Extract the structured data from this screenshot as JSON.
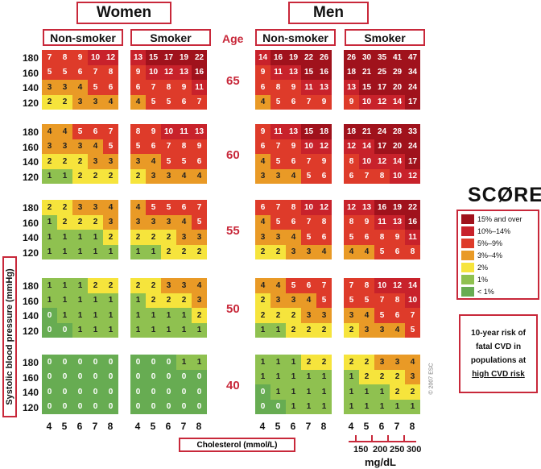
{
  "header": {
    "women": "Women",
    "men": "Men",
    "age": "Age"
  },
  "groups": {
    "non_smoker": "Non-smoker",
    "smoker": "Smoker"
  },
  "y_axis_label": "Systolic blood pressure (mmHg)",
  "x_axis_label": "Cholesterol (mmol/L)",
  "score_logo": "SCØRE",
  "legend": {
    "entries": [
      {
        "label": "15% and over",
        "color": "#a0121c"
      },
      {
        "label": "10%–14%",
        "color": "#c8222b"
      },
      {
        "label": "5%–9%",
        "color": "#de3b2a"
      },
      {
        "label": "3%–4%",
        "color": "#e99a26"
      },
      {
        "label": "2%",
        "color": "#f6e43c"
      },
      {
        "label": "1%",
        "color": "#8fc150"
      },
      {
        "label": "< 1%",
        "color": "#67ac52"
      }
    ]
  },
  "risk_box": {
    "line1": "10-year risk of",
    "line2": "fatal CVD in",
    "line3": "populations at",
    "line4": "high CVD risk"
  },
  "copyright": "© 2007 ESC",
  "mgdl": {
    "ticks": [
      "150",
      "200",
      "250",
      "300"
    ],
    "unit": "mg/dL"
  },
  "chart_data": {
    "type": "heatmap",
    "ages": [
      "65",
      "60",
      "55",
      "50",
      "40"
    ],
    "systolic_bp": [
      "180",
      "160",
      "140",
      "120"
    ],
    "cholesterol": [
      "4",
      "5",
      "6",
      "7",
      "8"
    ],
    "panels": {
      "women_nonsmoker": [
        [
          [
            7,
            8,
            9,
            10,
            12
          ],
          [
            5,
            5,
            6,
            7,
            8
          ],
          [
            3,
            3,
            4,
            5,
            6
          ],
          [
            2,
            2,
            3,
            3,
            4
          ]
        ],
        [
          [
            4,
            4,
            5,
            6,
            7
          ],
          [
            3,
            3,
            3,
            4,
            5
          ],
          [
            2,
            2,
            2,
            3,
            3
          ],
          [
            1,
            1,
            2,
            2,
            2
          ]
        ],
        [
          [
            2,
            2,
            3,
            3,
            4
          ],
          [
            1,
            2,
            2,
            2,
            3
          ],
          [
            1,
            1,
            1,
            1,
            2
          ],
          [
            1,
            1,
            1,
            1,
            1
          ]
        ],
        [
          [
            1,
            1,
            1,
            2,
            2
          ],
          [
            1,
            1,
            1,
            1,
            1
          ],
          [
            0,
            1,
            1,
            1,
            1
          ],
          [
            0,
            0,
            1,
            1,
            1
          ]
        ],
        [
          [
            0,
            0,
            0,
            0,
            0
          ],
          [
            0,
            0,
            0,
            0,
            0
          ],
          [
            0,
            0,
            0,
            0,
            0
          ],
          [
            0,
            0,
            0,
            0,
            0
          ]
        ]
      ],
      "women_smoker": [
        [
          [
            13,
            15,
            17,
            19,
            22
          ],
          [
            9,
            10,
            12,
            13,
            16
          ],
          [
            6,
            7,
            8,
            9,
            11
          ],
          [
            4,
            5,
            5,
            6,
            7
          ]
        ],
        [
          [
            8,
            9,
            10,
            11,
            13
          ],
          [
            5,
            6,
            7,
            8,
            9
          ],
          [
            3,
            4,
            5,
            5,
            6
          ],
          [
            2,
            3,
            3,
            4,
            4
          ]
        ],
        [
          [
            4,
            5,
            5,
            6,
            7
          ],
          [
            3,
            3,
            3,
            4,
            5
          ],
          [
            2,
            2,
            2,
            3,
            3
          ],
          [
            1,
            1,
            2,
            2,
            2
          ]
        ],
        [
          [
            2,
            2,
            3,
            3,
            4
          ],
          [
            1,
            2,
            2,
            2,
            3
          ],
          [
            1,
            1,
            1,
            1,
            2
          ],
          [
            1,
            1,
            1,
            1,
            1
          ]
        ],
        [
          [
            0,
            0,
            0,
            1,
            1
          ],
          [
            0,
            0,
            0,
            0,
            0
          ],
          [
            0,
            0,
            0,
            0,
            0
          ],
          [
            0,
            0,
            0,
            0,
            0
          ]
        ]
      ],
      "men_nonsmoker": [
        [
          [
            14,
            16,
            19,
            22,
            26
          ],
          [
            9,
            11,
            13,
            15,
            16
          ],
          [
            6,
            8,
            9,
            11,
            13
          ],
          [
            4,
            5,
            6,
            7,
            9
          ]
        ],
        [
          [
            9,
            11,
            13,
            15,
            18
          ],
          [
            6,
            7,
            9,
            10,
            12
          ],
          [
            4,
            5,
            6,
            7,
            9
          ],
          [
            3,
            3,
            4,
            5,
            6
          ]
        ],
        [
          [
            6,
            7,
            8,
            10,
            12
          ],
          [
            4,
            5,
            6,
            7,
            8
          ],
          [
            3,
            3,
            4,
            5,
            6
          ],
          [
            2,
            2,
            3,
            3,
            4
          ]
        ],
        [
          [
            4,
            4,
            5,
            6,
            7
          ],
          [
            2,
            3,
            3,
            4,
            5
          ],
          [
            2,
            2,
            2,
            3,
            3
          ],
          [
            1,
            1,
            2,
            2,
            2
          ]
        ],
        [
          [
            1,
            1,
            1,
            2,
            2
          ],
          [
            1,
            1,
            1,
            1,
            1
          ],
          [
            0,
            1,
            1,
            1,
            1
          ],
          [
            0,
            0,
            1,
            1,
            1
          ]
        ]
      ],
      "men_smoker": [
        [
          [
            26,
            30,
            35,
            41,
            47
          ],
          [
            18,
            21,
            25,
            29,
            34
          ],
          [
            13,
            15,
            17,
            20,
            24
          ],
          [
            9,
            10,
            12,
            14,
            17
          ]
        ],
        [
          [
            18,
            21,
            24,
            28,
            33
          ],
          [
            12,
            14,
            17,
            20,
            24
          ],
          [
            8,
            10,
            12,
            14,
            17
          ],
          [
            6,
            7,
            8,
            10,
            12
          ]
        ],
        [
          [
            12,
            13,
            16,
            19,
            22
          ],
          [
            8,
            9,
            11,
            13,
            16
          ],
          [
            5,
            6,
            8,
            9,
            11
          ],
          [
            4,
            4,
            5,
            6,
            8
          ]
        ],
        [
          [
            7,
            8,
            10,
            12,
            14
          ],
          [
            5,
            5,
            7,
            8,
            10
          ],
          [
            3,
            4,
            5,
            6,
            7
          ],
          [
            2,
            3,
            3,
            4,
            5
          ]
        ],
        [
          [
            2,
            2,
            3,
            3,
            4
          ],
          [
            1,
            2,
            2,
            2,
            3
          ],
          [
            1,
            1,
            1,
            2,
            2
          ],
          [
            1,
            1,
            1,
            1,
            1
          ]
        ]
      ]
    }
  }
}
